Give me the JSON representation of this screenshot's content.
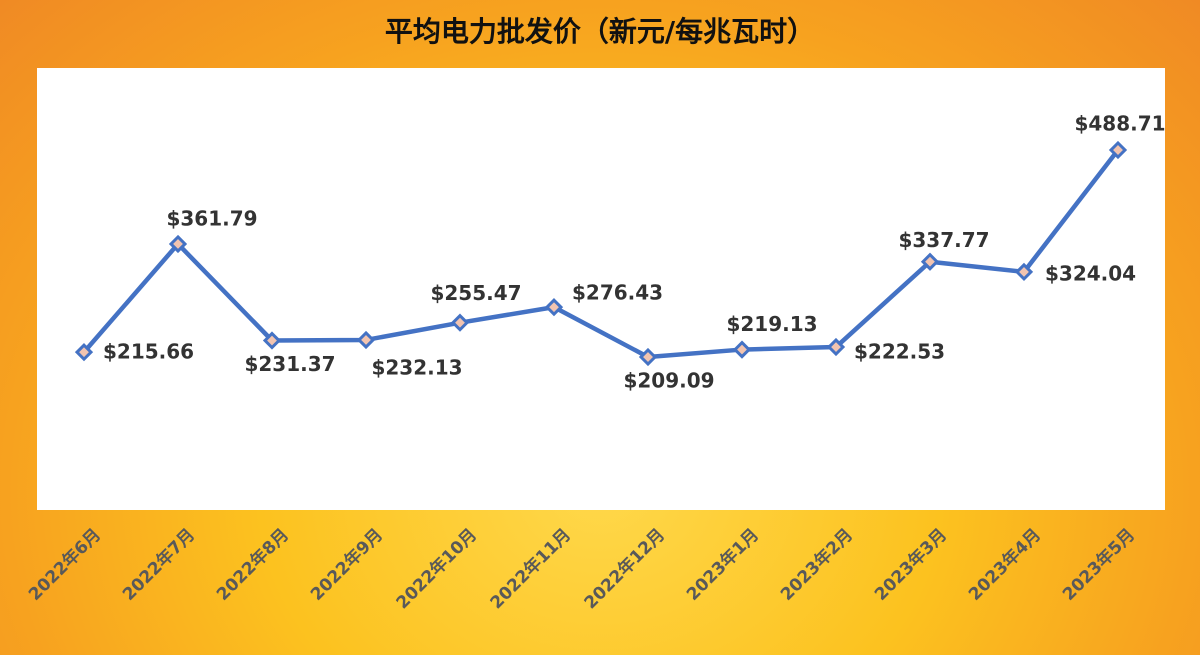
{
  "chart_data": {
    "type": "line",
    "title": "平均电力批发价（新元/每兆瓦时）",
    "categories": [
      "2022年6月",
      "2022年7月",
      "2022年8月",
      "2022年9月",
      "2022年10月",
      "2022年11月",
      "2022年12月",
      "2023年1月",
      "2023年2月",
      "2023年3月",
      "2023年4月",
      "2023年5月"
    ],
    "values": [
      215.66,
      361.79,
      231.37,
      232.13,
      255.47,
      276.43,
      209.09,
      219.13,
      222.53,
      337.77,
      324.04,
      488.71
    ],
    "value_labels": [
      "$215.66",
      "$361.79",
      "$231.37",
      "$232.13",
      "$255.47",
      "$276.43",
      "$209.09",
      "$219.13",
      "$222.53",
      "$337.77",
      "$324.04",
      "$488.71"
    ],
    "color": "#4472c4"
  }
}
